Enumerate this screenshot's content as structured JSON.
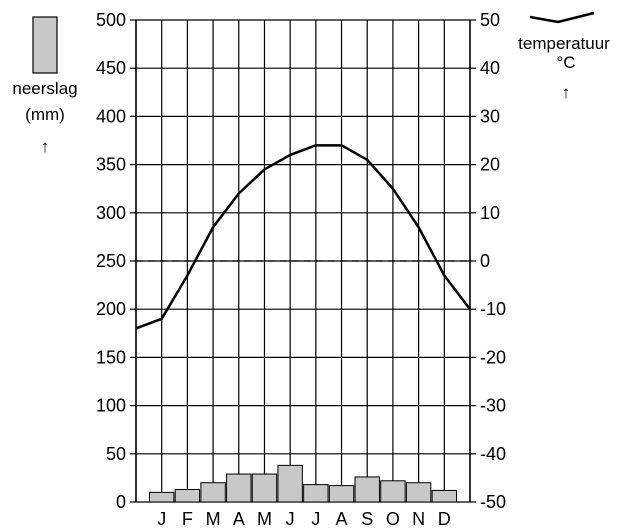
{
  "chart_data": {
    "type": "climate-diagram",
    "categories": [
      "J",
      "F",
      "M",
      "A",
      "M",
      "J",
      "J",
      "A",
      "S",
      "O",
      "N",
      "D"
    ],
    "series": [
      {
        "name": "neerslag",
        "kind": "bar",
        "axis": "left",
        "values": [
          10,
          13,
          20,
          29,
          29,
          38,
          18,
          17,
          26,
          22,
          20,
          12
        ]
      },
      {
        "name": "temperatuur",
        "kind": "line",
        "axis": "right",
        "values": [
          -12,
          -3,
          7,
          14,
          19,
          22,
          24,
          24,
          21,
          15,
          7,
          -3
        ]
      }
    ],
    "line_endpoints": {
      "start": -14,
      "end": -10
    },
    "left_axis": {
      "label": "neerslag",
      "unit": "(mm)",
      "ylim": [
        0,
        500
      ],
      "ticks": [
        "0",
        "50",
        "100",
        "150",
        "200",
        "250",
        "300",
        "350",
        "400",
        "450",
        "500"
      ]
    },
    "right_axis": {
      "label": "temperatuur",
      "unit": "°C",
      "ylim": [
        -50,
        50
      ],
      "ticks": [
        "-50",
        "-40",
        "-30",
        "-20",
        "-10",
        "0",
        "10",
        "20",
        "30",
        "40",
        "50"
      ]
    },
    "zero_line": {
      "value": 0,
      "style": "dashed"
    },
    "grid": {
      "horizontal": true,
      "vertical": true
    },
    "bar_color": "#c8c8c8",
    "line_color": "#000000",
    "arrow_glyph": "↑"
  }
}
